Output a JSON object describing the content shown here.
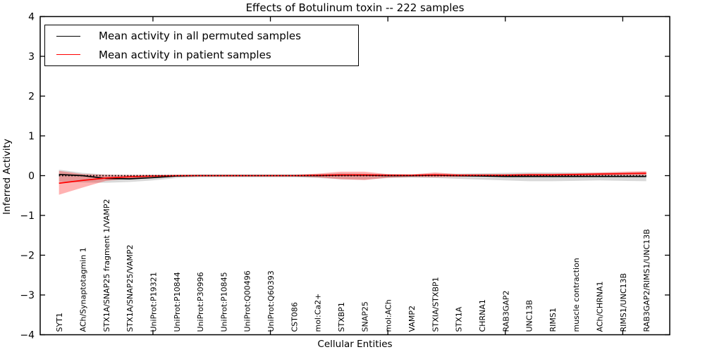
{
  "legend": {
    "position": "upper left",
    "items": [
      {
        "label": "Mean activity in all permuted samples",
        "color": "#000000"
      },
      {
        "label": "Mean activity in patient samples",
        "color": "#ff0000"
      }
    ]
  },
  "chart_data": {
    "type": "line",
    "title": "Effects of Botulinum toxin -- 222 samples",
    "xlabel": "Cellular Entities",
    "ylabel": "Inferred Activity",
    "ylim": [
      -4,
      4
    ],
    "yticks": [
      4,
      3,
      2,
      1,
      0,
      -1,
      -2,
      -3,
      -4
    ],
    "ytick_labels": [
      "4",
      "3",
      "2",
      "1",
      "0",
      "−1",
      "−2",
      "−3",
      "−4"
    ],
    "xlim": [
      0.2,
      27.0
    ],
    "xticks": [
      5,
      10,
      15,
      20,
      25
    ],
    "grid": false,
    "legend_position": "upper left",
    "zero_line": {
      "y": 0,
      "style": "dotted",
      "color": "#000000"
    },
    "categories": [
      "SYT1",
      "ACh/Synaptotagmin 1",
      "STX1A/SNAP25 fragment 1/VAMP2",
      "STX1A/SNAP25/VAMP2",
      "UniProt:P19321",
      "UniProt:P10844",
      "UniProt:P30996",
      "UniProt:P10845",
      "UniProt:Q00496",
      "UniProt:Q60393",
      "CST086",
      "mol:Ca2+",
      "STXBP1",
      "SNAP25",
      "mol:ACh",
      "VAMP2",
      "STXIA/STXBP1",
      "STX1A",
      "CHRNA1",
      "RAB3GAP2",
      "UNC13B",
      "RIMS1",
      "muscle contraction",
      "ACh/CHRNA1",
      "RIMS1/UNC13B",
      "RAB3GAP2/RIMS1/UNC13B"
    ],
    "x": [
      1,
      2,
      3,
      4,
      5,
      6,
      7,
      8,
      9,
      10,
      11,
      12,
      13,
      14,
      15,
      16,
      17,
      18,
      19,
      20,
      21,
      22,
      23,
      24,
      25,
      26
    ],
    "series": [
      {
        "name": "Mean activity in all permuted samples",
        "color": "#000000",
        "band_color": "#000000",
        "band_opacity": 0.15,
        "values": [
          0.03,
          0.0,
          -0.07,
          -0.08,
          -0.05,
          -0.01,
          0.0,
          0.0,
          0.0,
          0.0,
          0.0,
          0.0,
          0.01,
          0.01,
          0.0,
          0.0,
          0.01,
          0.0,
          -0.01,
          -0.02,
          -0.02,
          -0.02,
          -0.02,
          -0.02,
          -0.02,
          -0.02
        ],
        "band_upper": [
          0.15,
          0.07,
          0.03,
          0.01,
          0.02,
          0.02,
          0.03,
          0.03,
          0.03,
          0.03,
          0.03,
          0.04,
          0.06,
          0.05,
          0.04,
          0.03,
          0.05,
          0.05,
          0.06,
          0.07,
          0.08,
          0.08,
          0.08,
          0.07,
          0.08,
          0.09
        ],
        "band_lower": [
          -0.15,
          -0.17,
          -0.18,
          -0.16,
          -0.12,
          -0.06,
          -0.04,
          -0.04,
          -0.04,
          -0.04,
          -0.04,
          -0.06,
          -0.09,
          -0.1,
          -0.06,
          -0.05,
          -0.06,
          -0.08,
          -0.1,
          -0.12,
          -0.14,
          -0.14,
          -0.13,
          -0.12,
          -0.13,
          -0.14
        ]
      },
      {
        "name": "Mean activity in patient samples",
        "color": "#ff0000",
        "band_color": "#ff0000",
        "band_opacity": 0.3,
        "values": [
          -0.19,
          -0.12,
          -0.06,
          -0.03,
          -0.01,
          0.0,
          0.0,
          0.0,
          0.0,
          0.0,
          0.0,
          0.01,
          0.02,
          0.02,
          0.01,
          0.01,
          0.02,
          0.01,
          0.01,
          0.01,
          0.02,
          0.02,
          0.03,
          0.04,
          0.05,
          0.06
        ],
        "band_upper": [
          0.12,
          0.04,
          0.02,
          0.02,
          0.02,
          0.02,
          0.02,
          0.02,
          0.02,
          0.02,
          0.02,
          0.05,
          0.1,
          0.1,
          0.04,
          0.03,
          0.08,
          0.04,
          0.04,
          0.04,
          0.05,
          0.05,
          0.06,
          0.08,
          0.1,
          0.11
        ],
        "band_lower": [
          -0.48,
          -0.3,
          -0.13,
          -0.07,
          -0.04,
          -0.02,
          -0.02,
          -0.02,
          -0.02,
          -0.02,
          -0.02,
          -0.04,
          -0.09,
          -0.11,
          -0.05,
          -0.03,
          -0.04,
          -0.03,
          -0.02,
          -0.02,
          -0.02,
          -0.01,
          -0.01,
          0.0,
          0.01,
          0.01
        ]
      }
    ]
  }
}
